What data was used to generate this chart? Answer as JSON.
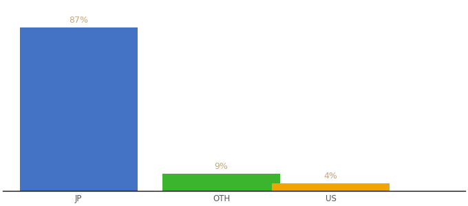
{
  "categories": [
    "JP",
    "OTH",
    "US"
  ],
  "values": [
    87,
    9,
    4
  ],
  "bar_colors": [
    "#4472c4",
    "#3cb52e",
    "#f0a500"
  ],
  "labels": [
    "87%",
    "9%",
    "4%"
  ],
  "ylim": [
    0,
    100
  ],
  "label_color": "#c8a882",
  "background_color": "#ffffff",
  "bar_width": 0.28,
  "x_positions": [
    0.18,
    0.52,
    0.78
  ],
  "xlim": [
    0,
    1.1
  ],
  "tick_fontsize": 8.5,
  "label_fontsize": 9
}
